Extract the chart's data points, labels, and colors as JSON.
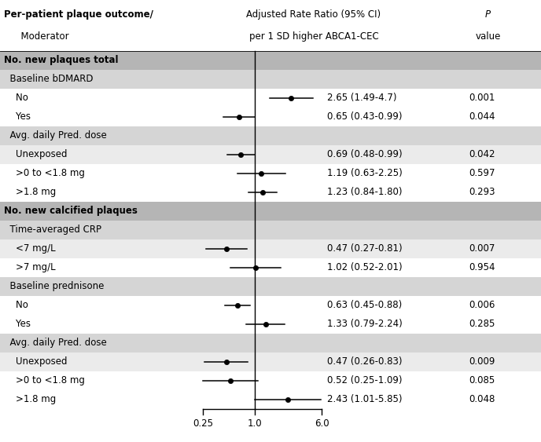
{
  "header_col1_line1": "Per-patient plaque outcome/",
  "header_col1_line2": "  Moderator",
  "header_col2_line1": "Adjusted Rate Ratio (95% CI)",
  "header_col2_line2": "per 1 SD higher ABCA1-CEC",
  "header_p_line1": "P",
  "header_p_line2": "value",
  "rows": [
    {
      "label": "No. new plaques total",
      "type": "section",
      "indent": 0
    },
    {
      "label": "  Baseline bDMARD",
      "type": "subheader",
      "indent": 1
    },
    {
      "label": "    No",
      "type": "data",
      "indent": 2,
      "est": 2.65,
      "lo": 1.49,
      "hi": 4.7,
      "ci_text": "2.65 (1.49-4.7)",
      "p": "0.001"
    },
    {
      "label": "    Yes",
      "type": "data",
      "indent": 2,
      "est": 0.65,
      "lo": 0.43,
      "hi": 0.99,
      "ci_text": "0.65 (0.43-0.99)",
      "p": "0.044"
    },
    {
      "label": "  Avg. daily Pred. dose",
      "type": "subheader",
      "indent": 1
    },
    {
      "label": "    Unexposed",
      "type": "data",
      "indent": 2,
      "est": 0.69,
      "lo": 0.48,
      "hi": 0.99,
      "ci_text": "0.69 (0.48-0.99)",
      "p": "0.042"
    },
    {
      "label": "    >0 to <1.8 mg",
      "type": "data",
      "indent": 2,
      "est": 1.19,
      "lo": 0.63,
      "hi": 2.25,
      "ci_text": "1.19 (0.63-2.25)",
      "p": "0.597"
    },
    {
      "label": "    >1.8 mg",
      "type": "data",
      "indent": 2,
      "est": 1.23,
      "lo": 0.84,
      "hi": 1.8,
      "ci_text": "1.23 (0.84-1.80)",
      "p": "0.293"
    },
    {
      "label": "No. new calcified plaques",
      "type": "section",
      "indent": 0
    },
    {
      "label": "  Time-averaged CRP",
      "type": "subheader",
      "indent": 1
    },
    {
      "label": "    <7 mg/L",
      "type": "data",
      "indent": 2,
      "est": 0.47,
      "lo": 0.27,
      "hi": 0.81,
      "ci_text": "0.47 (0.27-0.81)",
      "p": "0.007"
    },
    {
      "label": "    >7 mg/L",
      "type": "data",
      "indent": 2,
      "est": 1.02,
      "lo": 0.52,
      "hi": 2.01,
      "ci_text": "1.02 (0.52-2.01)",
      "p": "0.954"
    },
    {
      "label": "  Baseline prednisone",
      "type": "subheader",
      "indent": 1
    },
    {
      "label": "    No",
      "type": "data",
      "indent": 2,
      "est": 0.63,
      "lo": 0.45,
      "hi": 0.88,
      "ci_text": "0.63 (0.45-0.88)",
      "p": "0.006"
    },
    {
      "label": "    Yes",
      "type": "data",
      "indent": 2,
      "est": 1.33,
      "lo": 0.79,
      "hi": 2.24,
      "ci_text": "1.33 (0.79-2.24)",
      "p": "0.285"
    },
    {
      "label": "  Avg. daily Pred. dose",
      "type": "subheader",
      "indent": 1
    },
    {
      "label": "    Unexposed",
      "type": "data",
      "indent": 2,
      "est": 0.47,
      "lo": 0.26,
      "hi": 0.83,
      "ci_text": "0.47 (0.26-0.83)",
      "p": "0.009"
    },
    {
      "label": "    >0 to <1.8 mg",
      "type": "data",
      "indent": 2,
      "est": 0.52,
      "lo": 0.25,
      "hi": 1.09,
      "ci_text": "0.52 (0.25-1.09)",
      "p": "0.085"
    },
    {
      "label": "    >1.8 mg",
      "type": "data",
      "indent": 2,
      "est": 2.43,
      "lo": 1.01,
      "hi": 5.85,
      "ci_text": "2.43 (1.01-5.85)",
      "p": "0.048"
    }
  ],
  "xmin": 0.25,
  "xmax": 6.0,
  "xticks": [
    0.25,
    1.0,
    6.0
  ],
  "xref": 1.0,
  "row_bgs": [
    "#b5b5b5",
    "#d5d5d5",
    "#ffffff",
    "#ffffff",
    "#d5d5d5",
    "#ebebeb",
    "#ffffff",
    "#ffffff",
    "#b5b5b5",
    "#d5d5d5",
    "#ebebeb",
    "#ffffff",
    "#d5d5d5",
    "#ffffff",
    "#ffffff",
    "#d5d5d5",
    "#ebebeb",
    "#ffffff",
    "#ffffff"
  ],
  "dot_color": "#000000",
  "line_color": "#000000",
  "label_fontsize": 8.5,
  "header_fontsize": 8.5
}
